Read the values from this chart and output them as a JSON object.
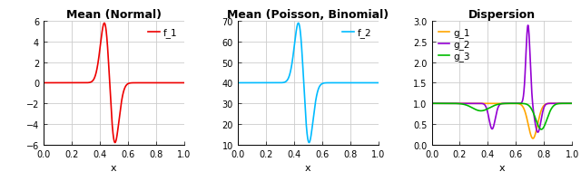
{
  "title1": "Mean (Normal)",
  "title2": "Mean (Poisson, Binomial)",
  "title3": "Dispersion",
  "legend1": "f_1",
  "legend2": "f_2",
  "legend3_1": "g_1",
  "legend3_2": "g_2",
  "legend3_3": "g_3",
  "xlabel": "x",
  "color1": "#EE0000",
  "color2": "#00BBFF",
  "color_g1": "#FFA500",
  "color_g2": "#9400D3",
  "color_g3": "#00BB00",
  "ylim1": [
    -6,
    6
  ],
  "ylim2": [
    10,
    70
  ],
  "ylim3": [
    0.0,
    3.0
  ],
  "xlim": [
    0.0,
    1.0
  ],
  "yticks1": [
    -6,
    -4,
    -2,
    0,
    2,
    4,
    6
  ],
  "yticks2": [
    10,
    20,
    30,
    40,
    50,
    60,
    70
  ],
  "yticks3": [
    0.0,
    0.5,
    1.0,
    1.5,
    2.0,
    2.5,
    3.0
  ],
  "xticks": [
    0.0,
    0.2,
    0.4,
    0.6,
    0.8,
    1.0
  ],
  "plot_bg": "#FFFFFF",
  "grid_color": "#CCCCCC",
  "title_fontsize": 9,
  "legend_fontsize": 7.5,
  "tick_fontsize": 7,
  "label_fontsize": 8
}
